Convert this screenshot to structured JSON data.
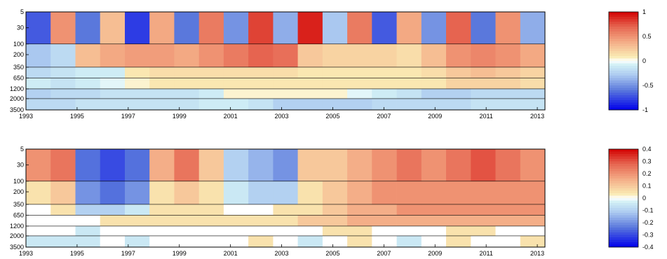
{
  "chart_data": [
    {
      "type": "heatmap",
      "x_ticks": [
        "1993",
        "1995",
        "1997",
        "1999",
        "2001",
        "2003",
        "2005",
        "2007",
        "2009",
        "2011",
        "2013"
      ],
      "y_ticks": [
        "5",
        "30",
        "100",
        "200",
        "350",
        "650",
        "1200",
        "2000",
        "3500"
      ],
      "y_reversed": true,
      "xlim": [
        1993,
        2013.3
      ],
      "colorbar": {
        "range": [
          -1,
          1
        ],
        "ticks": [
          "1",
          "0.5",
          "0",
          "-0.5",
          "-1"
        ]
      },
      "bands": [
        {
          "depth_range": [
            5,
            100
          ],
          "values": [
            -0.7,
            0.5,
            -0.6,
            0.3,
            -0.8,
            0.4,
            -0.6,
            0.6,
            -0.5,
            0.8,
            -0.4,
            0.9,
            -0.3,
            0.6,
            -0.7,
            0.4,
            -0.5,
            0.7,
            -0.6,
            0.5,
            -0.4
          ]
        },
        {
          "depth_range": [
            100,
            350
          ],
          "values": [
            -0.3,
            -0.2,
            0.3,
            0.4,
            0.45,
            0.45,
            0.4,
            0.5,
            0.6,
            0.7,
            0.65,
            0.25,
            0.2,
            0.2,
            0.2,
            0.15,
            0.3,
            0.5,
            0.55,
            0.5,
            0.4
          ]
        },
        {
          "depth_range": [
            350,
            650
          ],
          "values": [
            -0.2,
            -0.15,
            -0.1,
            -0.1,
            0.1,
            0.15,
            0.15,
            0.15,
            0.15,
            0.15,
            0.15,
            0.1,
            0.1,
            0.1,
            0.1,
            0.1,
            0.15,
            0.25,
            0.3,
            0.25,
            0.2
          ]
        },
        {
          "depth_range": [
            650,
            1200
          ],
          "values": [
            -0.1,
            -0.15,
            -0.1,
            -0.05,
            0.05,
            0.1,
            0.1,
            0.1,
            0.1,
            0.1,
            0.1,
            0.1,
            0.1,
            0.1,
            0.1,
            0.1,
            0.1,
            0.2,
            0.2,
            0.2,
            0.15
          ]
        },
        {
          "depth_range": [
            1200,
            2000
          ],
          "values": [
            -0.25,
            -0.2,
            -0.2,
            -0.15,
            -0.15,
            -0.15,
            -0.15,
            -0.1,
            0.05,
            0.05,
            0.05,
            0.05,
            0.05,
            -0.05,
            -0.1,
            -0.15,
            -0.25,
            -0.25,
            -0.2,
            -0.2,
            -0.2
          ]
        },
        {
          "depth_range": [
            2000,
            3500
          ],
          "values": [
            -0.2,
            -0.2,
            -0.15,
            -0.15,
            -0.15,
            -0.15,
            -0.15,
            -0.1,
            -0.1,
            -0.15,
            -0.25,
            -0.25,
            -0.25,
            -0.25,
            -0.2,
            -0.2,
            -0.2,
            -0.2,
            -0.15,
            -0.15,
            -0.15
          ]
        }
      ]
    },
    {
      "type": "heatmap",
      "x_ticks": [
        "1993",
        "1995",
        "1997",
        "1999",
        "2001",
        "2003",
        "2005",
        "2007",
        "2009",
        "2011",
        "2013"
      ],
      "y_ticks": [
        "5",
        "30",
        "100",
        "200",
        "350",
        "650",
        "1200",
        "2000",
        "3500"
      ],
      "y_reversed": true,
      "xlim": [
        1993,
        2013.3
      ],
      "colorbar": {
        "range": [
          -0.4,
          0.4
        ],
        "ticks": [
          "0.4",
          "0.3",
          "0.2",
          "0.1",
          "0",
          "-0.1",
          "-0.2",
          "-0.3",
          "-0.4"
        ]
      },
      "bands": [
        {
          "depth_range": [
            5,
            100
          ],
          "values": [
            0.2,
            0.25,
            -0.25,
            -0.3,
            -0.25,
            0.15,
            0.25,
            0.1,
            -0.1,
            -0.15,
            -0.2,
            0.1,
            0.1,
            0.15,
            0.2,
            0.25,
            0.2,
            0.25,
            0.3,
            0.25,
            0.2
          ]
        },
        {
          "depth_range": [
            100,
            350
          ],
          "values": [
            0.05,
            0.1,
            -0.2,
            -0.25,
            -0.2,
            0.05,
            0.1,
            0.05,
            -0.05,
            -0.1,
            -0.1,
            0.05,
            0.1,
            0.15,
            0.2,
            0.2,
            0.2,
            0.2,
            0.2,
            0.2,
            0.2
          ]
        },
        {
          "depth_range": [
            350,
            650
          ],
          "values": [
            0.0,
            0.05,
            -0.1,
            -0.1,
            -0.05,
            0.05,
            0.05,
            0.05,
            0.0,
            0.0,
            0.05,
            0.05,
            0.1,
            0.15,
            0.15,
            0.2,
            0.2,
            0.2,
            0.2,
            0.2,
            0.2
          ]
        },
        {
          "depth_range": [
            650,
            1200
          ],
          "values": [
            0.0,
            0.0,
            0.0,
            0.05,
            0.05,
            0.05,
            0.05,
            0.05,
            0.05,
            0.05,
            0.05,
            0.1,
            0.1,
            0.15,
            0.15,
            0.15,
            0.15,
            0.15,
            0.15,
            0.15,
            0.15
          ]
        },
        {
          "depth_range": [
            1200,
            2000
          ],
          "values": [
            0.0,
            0.0,
            -0.05,
            0.0,
            0.0,
            0.0,
            0.0,
            0.0,
            0.0,
            0.0,
            0.0,
            0.0,
            0.05,
            0.05,
            0.0,
            0.0,
            0.0,
            0.05,
            0.05,
            0.0,
            0.0
          ]
        },
        {
          "depth_range": [
            2000,
            3500
          ],
          "values": [
            -0.05,
            -0.05,
            -0.05,
            0.0,
            -0.05,
            0.0,
            0.0,
            0.0,
            0.0,
            0.05,
            0.0,
            -0.05,
            0.0,
            0.05,
            0.0,
            -0.05,
            0.0,
            0.05,
            0.0,
            0.0,
            0.05
          ]
        }
      ]
    }
  ]
}
